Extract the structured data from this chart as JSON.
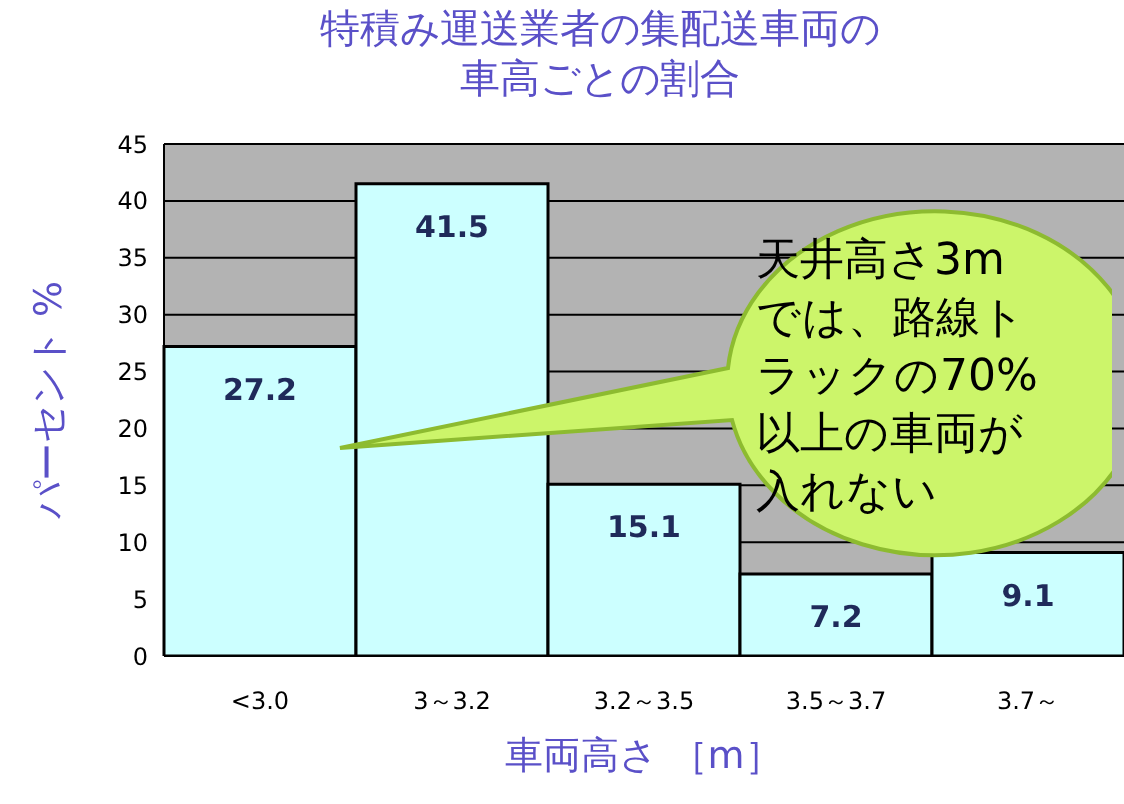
{
  "chart_data": {
    "type": "bar",
    "title": "特積み運送業者の集配送車両の車高ごとの割合",
    "xlabel": "車両高さ ［m］",
    "ylabel": "パーセント %",
    "categories": [
      "<3.0",
      "3～3.2",
      "3.2～3.5",
      "3.5～3.7",
      "3.7～"
    ],
    "values": [
      27.2,
      41.5,
      15.1,
      7.2,
      9.1
    ],
    "color": "#ccffff",
    "ylim": [
      0,
      45
    ],
    "yticks": [
      0,
      5,
      10,
      15,
      20,
      25,
      30,
      35,
      40,
      45
    ],
    "grid": "y",
    "data_labels": true,
    "annotations": [
      "天井高さ3mでは、路線トラックの70%以上の車両が入れない"
    ]
  }
}
